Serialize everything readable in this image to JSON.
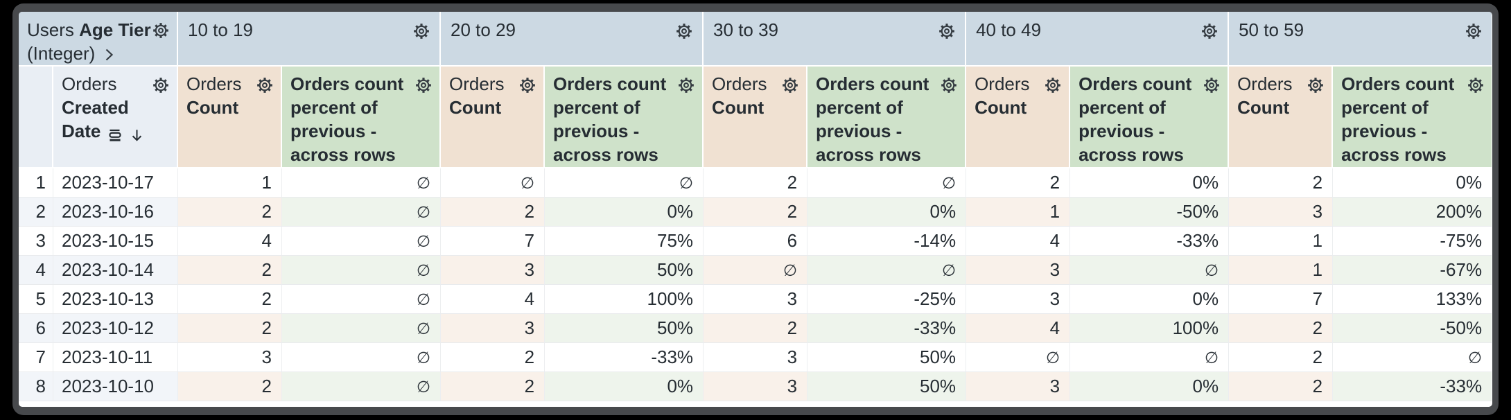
{
  "window": {
    "background": "#000000",
    "chrome_color": "#47494c",
    "panel_color": "#ffffff"
  },
  "colors": {
    "pivot_header_bg": "#ccd9e3",
    "row_header_bg": "#e9eef4",
    "count_header_bg": "#f0e1d2",
    "percent_header_bg": "#cfe2ca",
    "stripe_row_bg": "#f2f5f9",
    "stripe_count_bg": "#f9f1ea",
    "stripe_percent_bg": "#eef4ec",
    "text": "#262d33"
  },
  "icons": {
    "gear": "cog-outline",
    "chevron": "›",
    "sort_rows": "grouped-rows",
    "arrow_down": "↓",
    "null_value": "∅"
  },
  "table": {
    "dimension_header": {
      "view": "Users",
      "field": "Age Tier",
      "type_suffix": "(Integer)"
    },
    "row_field": {
      "view": "Orders",
      "field": "Created Date",
      "sort_direction": "descending"
    },
    "pivots": [
      "10 to 19",
      "20 to 29",
      "30 to 39",
      "40 to 49",
      "50 to 59"
    ],
    "measure_count": {
      "view": "Orders",
      "field": "Count"
    },
    "measure_pct": {
      "label": "Orders count percent of previous - across rows"
    },
    "null_symbol": "∅",
    "rows": [
      {
        "index": "1",
        "date": "2023-10-17",
        "values": [
          "1",
          "∅",
          "∅",
          "∅",
          "2",
          "∅",
          "2",
          "0%",
          "2",
          "0%"
        ]
      },
      {
        "index": "2",
        "date": "2023-10-16",
        "values": [
          "2",
          "∅",
          "2",
          "0%",
          "2",
          "0%",
          "1",
          "-50%",
          "3",
          "200%"
        ]
      },
      {
        "index": "3",
        "date": "2023-10-15",
        "values": [
          "4",
          "∅",
          "7",
          "75%",
          "6",
          "-14%",
          "4",
          "-33%",
          "1",
          "-75%"
        ]
      },
      {
        "index": "4",
        "date": "2023-10-14",
        "values": [
          "2",
          "∅",
          "3",
          "50%",
          "∅",
          "∅",
          "3",
          "∅",
          "1",
          "-67%"
        ]
      },
      {
        "index": "5",
        "date": "2023-10-13",
        "values": [
          "2",
          "∅",
          "4",
          "100%",
          "3",
          "-25%",
          "3",
          "0%",
          "7",
          "133%"
        ]
      },
      {
        "index": "6",
        "date": "2023-10-12",
        "values": [
          "2",
          "∅",
          "3",
          "50%",
          "2",
          "-33%",
          "4",
          "100%",
          "2",
          "-50%"
        ]
      },
      {
        "index": "7",
        "date": "2023-10-11",
        "values": [
          "3",
          "∅",
          "2",
          "-33%",
          "3",
          "50%",
          "∅",
          "∅",
          "2",
          "∅"
        ]
      },
      {
        "index": "8",
        "date": "2023-10-10",
        "values": [
          "2",
          "∅",
          "2",
          "0%",
          "3",
          "50%",
          "3",
          "0%",
          "2",
          "-33%"
        ]
      }
    ]
  }
}
